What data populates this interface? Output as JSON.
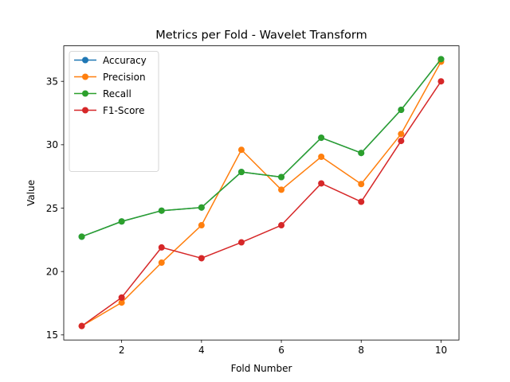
{
  "chart_data": {
    "type": "line",
    "title": "Metrics per Fold - Wavelet Transform",
    "xlabel": "Fold Number",
    "ylabel": "Value",
    "x": [
      1,
      2,
      3,
      4,
      5,
      6,
      7,
      8,
      9,
      10
    ],
    "xlim": [
      0.55,
      10.45
    ],
    "ylim": [
      14.6,
      37.8
    ],
    "xticks": [
      2,
      4,
      6,
      8,
      10
    ],
    "yticks": [
      15,
      20,
      25,
      30,
      35
    ],
    "grid": false,
    "legend_position": "upper-left",
    "series": [
      {
        "name": "Accuracy",
        "color": "#1f77b4",
        "values": [
          22.75,
          23.95,
          24.8,
          25.05,
          27.85,
          27.45,
          30.55,
          29.35,
          32.75,
          36.75
        ]
      },
      {
        "name": "Precision",
        "color": "#ff7f0e",
        "values": [
          15.7,
          17.55,
          20.7,
          23.65,
          29.6,
          26.45,
          29.05,
          26.9,
          30.85,
          36.55
        ]
      },
      {
        "name": "Recall",
        "color": "#2ca02c",
        "values": [
          22.75,
          23.95,
          24.8,
          25.05,
          27.85,
          27.45,
          30.55,
          29.35,
          32.75,
          36.75
        ]
      },
      {
        "name": "F1-Score",
        "color": "#d62728",
        "values": [
          15.7,
          17.95,
          21.9,
          21.05,
          22.3,
          23.65,
          26.95,
          25.5,
          30.3,
          35.0
        ]
      }
    ]
  }
}
